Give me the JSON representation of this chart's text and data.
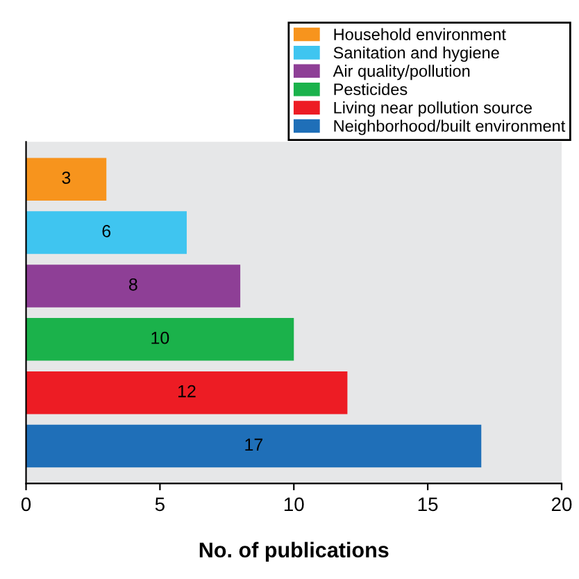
{
  "chart_data": {
    "type": "bar",
    "orientation": "horizontal",
    "xlabel": "No. of publications",
    "categories": [
      null,
      null,
      null,
      null,
      null,
      null
    ],
    "series": [
      {
        "name": "Household environment",
        "color": "#f7941d",
        "values": [
          3,
          null,
          null,
          null,
          null,
          null
        ]
      },
      {
        "name": "Sanitation and hygiene",
        "color": "#3fc5f0",
        "values": [
          null,
          6,
          null,
          null,
          null,
          null
        ]
      },
      {
        "name": "Air quality/pollution",
        "color": "#8e3f96",
        "values": [
          null,
          null,
          8,
          null,
          null,
          null
        ]
      },
      {
        "name": "Pesticides",
        "color": "#1bb24b",
        "values": [
          null,
          null,
          null,
          10,
          null,
          null
        ]
      },
      {
        "name": "Living near pollution source",
        "color": "#ed1c24",
        "values": [
          null,
          null,
          null,
          null,
          12,
          null
        ]
      },
      {
        "name": "Neighborhood/built environment",
        "color": "#1f6fb8",
        "values": [
          null,
          null,
          null,
          null,
          null,
          17
        ]
      }
    ],
    "xlim": [
      0,
      20
    ],
    "xticks": [
      0,
      5,
      10,
      15,
      20
    ],
    "data_labels": true,
    "legend": "top right",
    "tick_labels": "x",
    "grid": false
  }
}
